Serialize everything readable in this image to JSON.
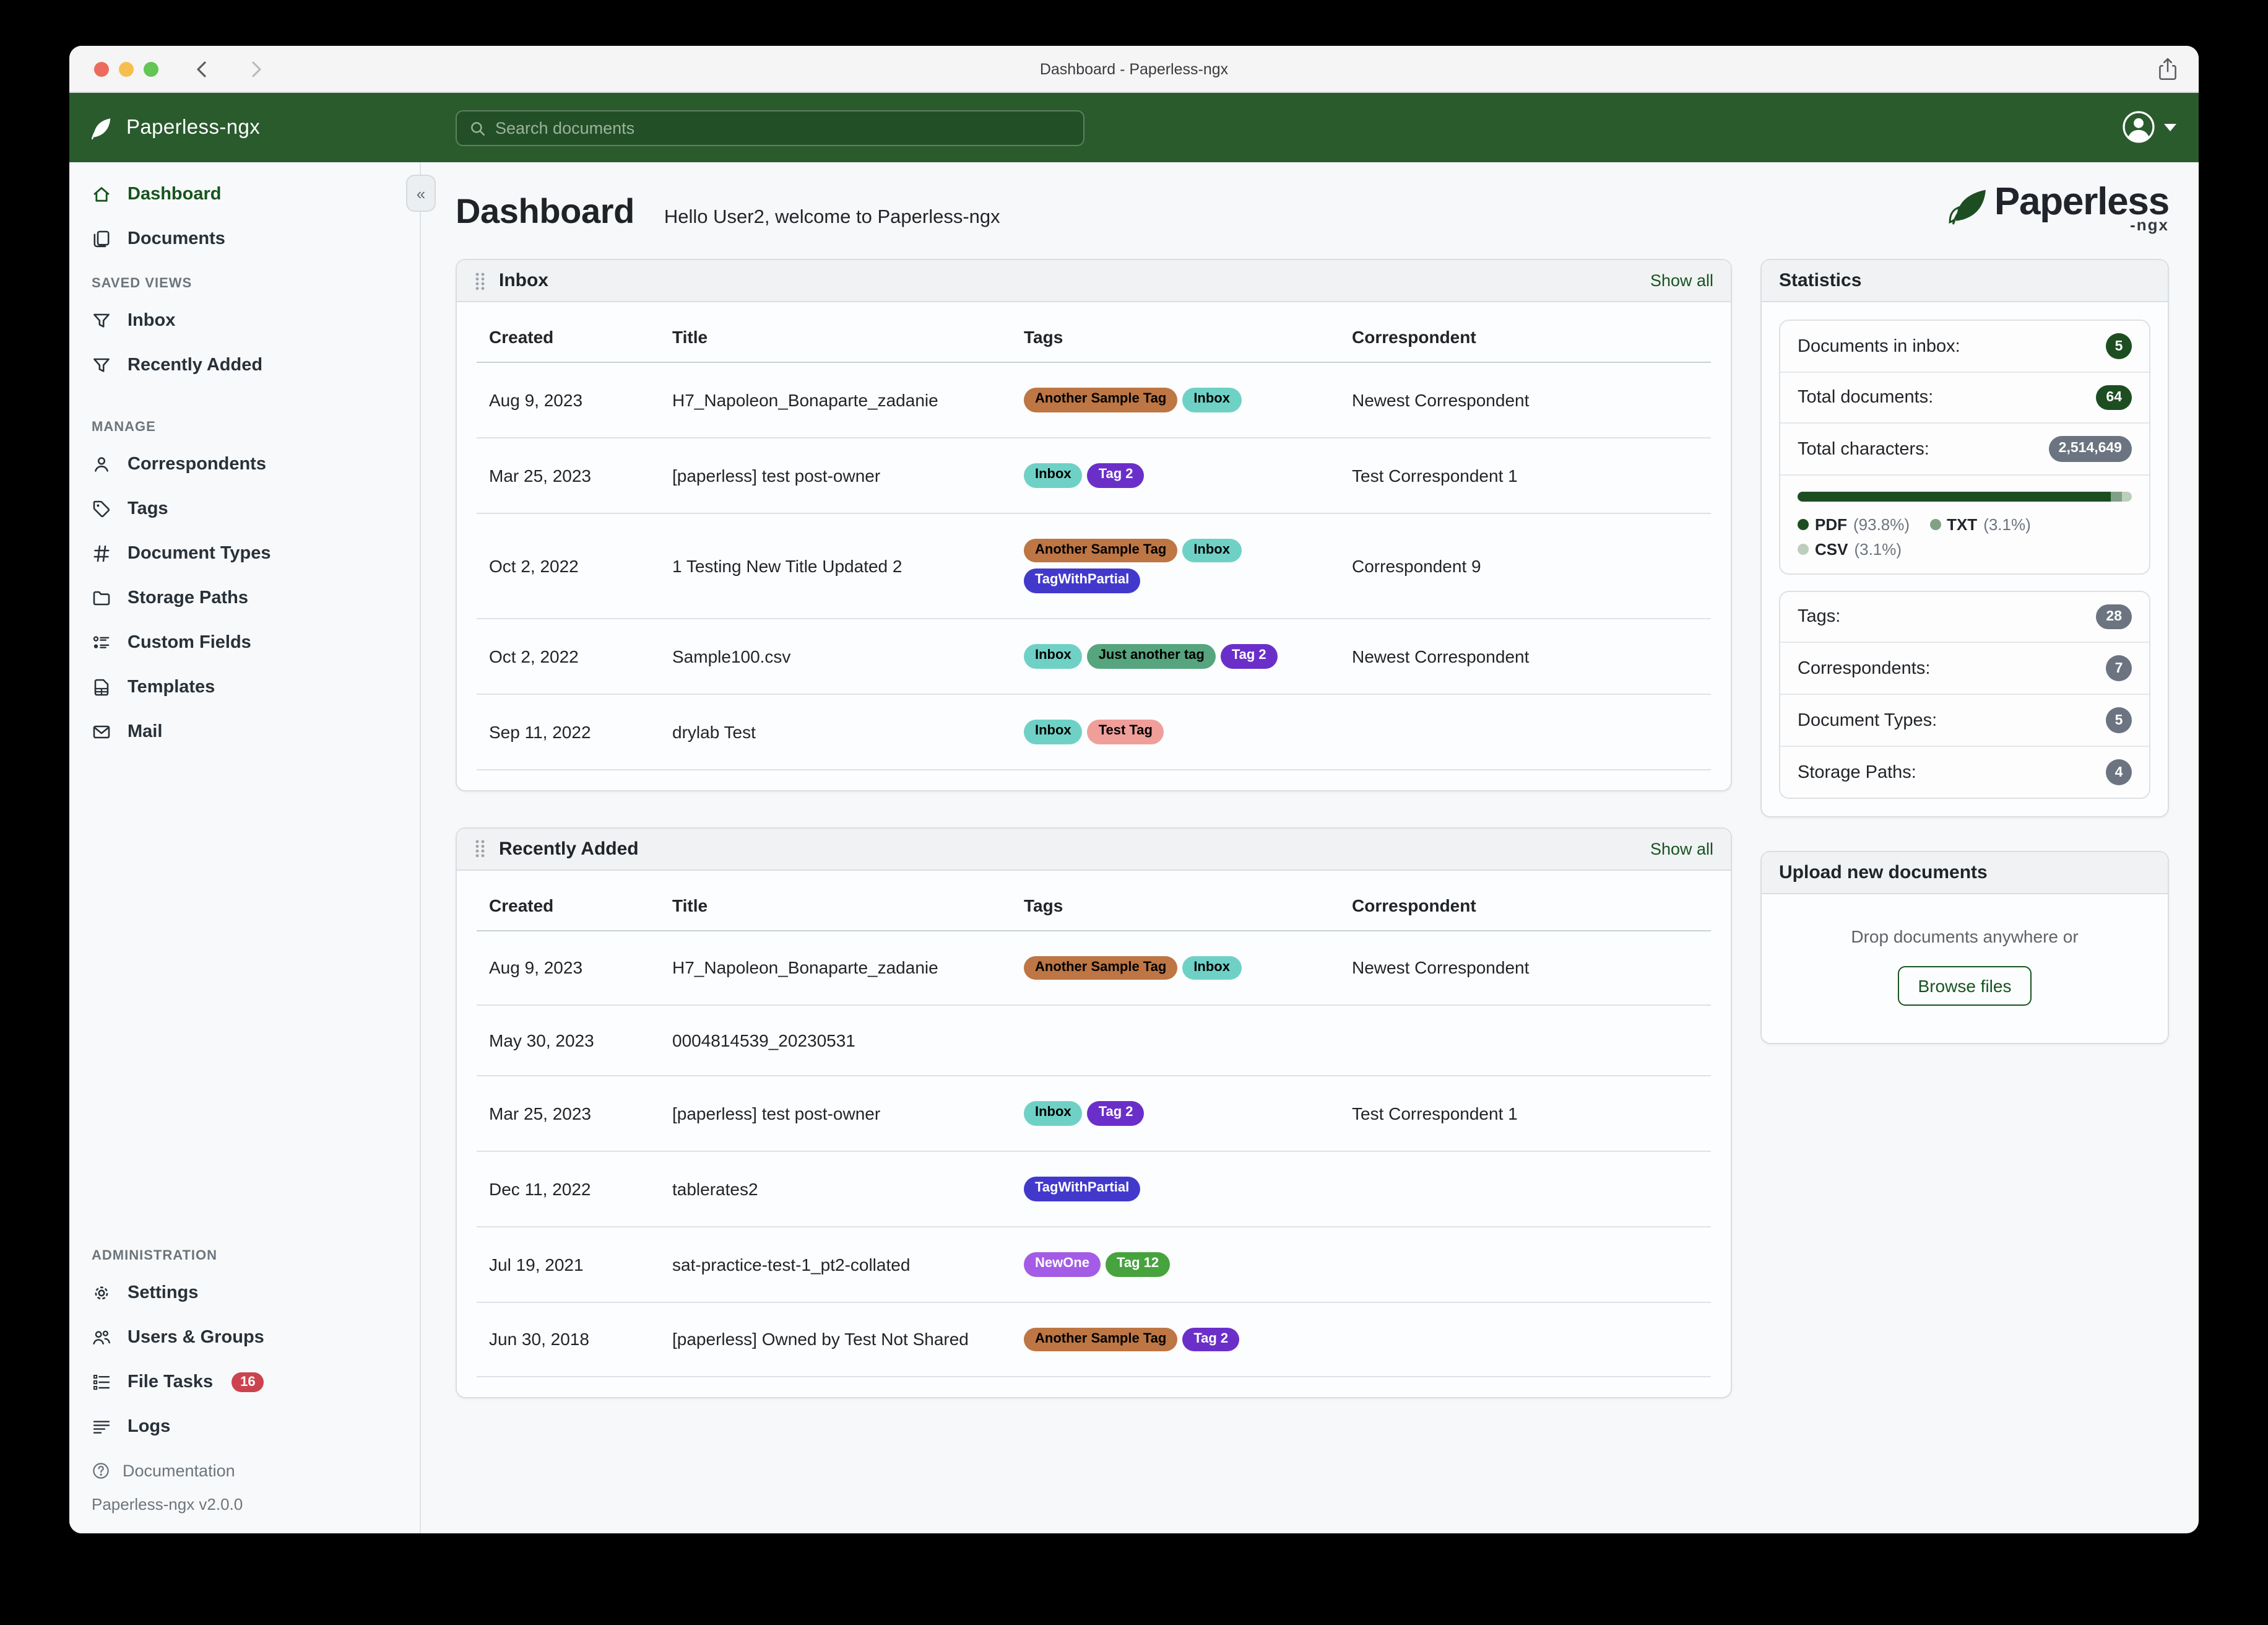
{
  "colors": {
    "accent_green": "#17541f",
    "header_green": "#2a5b2d",
    "badge_green": "#1d4e22",
    "badge_gray": "#6b7480",
    "badge_red": "#cc4350",
    "traffic_red": "#ed6a5e",
    "traffic_yellow": "#f5bf4f",
    "traffic_green": "#62c554"
  },
  "titlebar": {
    "title": "Dashboard - Paperless-ngx"
  },
  "app_header": {
    "brand": "Paperless-ngx",
    "search_placeholder": "Search documents"
  },
  "sidebar": {
    "sections": [
      {
        "heading": "",
        "items": [
          {
            "label": "Dashboard",
            "icon": "home",
            "active": true
          },
          {
            "label": "Documents",
            "icon": "documents"
          }
        ]
      },
      {
        "heading": "SAVED VIEWS",
        "items": [
          {
            "label": "Inbox",
            "icon": "filter"
          },
          {
            "label": "Recently Added",
            "icon": "filter"
          }
        ]
      },
      {
        "heading": "MANAGE",
        "items": [
          {
            "label": "Correspondents",
            "icon": "person"
          },
          {
            "label": "Tags",
            "icon": "tag"
          },
          {
            "label": "Document Types",
            "icon": "hash"
          },
          {
            "label": "Storage Paths",
            "icon": "folder"
          },
          {
            "label": "Custom Fields",
            "icon": "custom-fields"
          },
          {
            "label": "Templates",
            "icon": "template"
          },
          {
            "label": "Mail",
            "icon": "mail"
          }
        ]
      },
      {
        "heading": "ADMINISTRATION",
        "push_bottom": true,
        "items": [
          {
            "label": "Settings",
            "icon": "gear"
          },
          {
            "label": "Users & Groups",
            "icon": "users"
          },
          {
            "label": "File Tasks",
            "icon": "tasks",
            "badge": "16"
          },
          {
            "label": "Logs",
            "icon": "logs"
          }
        ]
      }
    ],
    "footer": {
      "documentation": "Documentation",
      "version": "Paperless-ngx v2.0.0"
    }
  },
  "page": {
    "title": "Dashboard",
    "greeting": "Hello User2, welcome to Paperless-ngx"
  },
  "logo": {
    "word": "Paperless",
    "suffix": "-ngx"
  },
  "tag_defs": {
    "another_sample_tag": {
      "label": "Another Sample Tag",
      "bg": "#bd7644",
      "fg": "#000000"
    },
    "inbox": {
      "label": "Inbox",
      "bg": "#6fd1c6",
      "fg": "#000000"
    },
    "tag2": {
      "label": "Tag 2",
      "bg": "#6b2fc9",
      "fg": "#ffffff"
    },
    "tag_with_partial": {
      "label": "TagWithPartial",
      "bg": "#4239cc",
      "fg": "#ffffff"
    },
    "just_another_tag": {
      "label": "Just another tag",
      "bg": "#56a57e",
      "fg": "#000000"
    },
    "test_tag": {
      "label": "Test Tag",
      "bg": "#f09e9a",
      "fg": "#000000"
    },
    "newone": {
      "label": "NewOne",
      "bg": "#a45ce6",
      "fg": "#ffffff"
    },
    "tag12": {
      "label": "Tag 12",
      "bg": "#47a33e",
      "fg": "#ffffff"
    }
  },
  "cards": [
    {
      "id": "inbox",
      "title": "Inbox",
      "show_all": "Show all",
      "columns": [
        "Created",
        "Title",
        "Tags",
        "Correspondent"
      ],
      "rows": [
        {
          "created": "Aug 9, 2023",
          "title": "H7_Napoleon_Bonaparte_zadanie",
          "tags": [
            "another_sample_tag",
            "inbox"
          ],
          "correspondent": "Newest Correspondent"
        },
        {
          "created": "Mar 25, 2023",
          "title": "[paperless] test post-owner",
          "tags": [
            "inbox",
            "tag2"
          ],
          "correspondent": "Test Correspondent 1"
        },
        {
          "created": "Oct 2, 2022",
          "title": "1 Testing New Title Updated 2",
          "tags": [
            "another_sample_tag",
            "inbox",
            "tag_with_partial"
          ],
          "correspondent": "Correspondent 9"
        },
        {
          "created": "Oct 2, 2022",
          "title": "Sample100.csv",
          "tags": [
            "inbox",
            "just_another_tag",
            "tag2"
          ],
          "correspondent": "Newest Correspondent"
        },
        {
          "created": "Sep 11, 2022",
          "title": "drylab Test",
          "tags": [
            "inbox",
            "test_tag"
          ],
          "correspondent": ""
        }
      ]
    },
    {
      "id": "recent",
      "title": "Recently Added",
      "show_all": "Show all",
      "columns": [
        "Created",
        "Title",
        "Tags",
        "Correspondent"
      ],
      "rows": [
        {
          "created": "Aug 9, 2023",
          "title": "H7_Napoleon_Bonaparte_zadanie",
          "tags": [
            "another_sample_tag",
            "inbox"
          ],
          "correspondent": "Newest Correspondent"
        },
        {
          "created": "May 30, 2023",
          "title": "0004814539_20230531",
          "tags": [],
          "correspondent": ""
        },
        {
          "created": "Mar 25, 2023",
          "title": "[paperless] test post-owner",
          "tags": [
            "inbox",
            "tag2"
          ],
          "correspondent": "Test Correspondent 1"
        },
        {
          "created": "Dec 11, 2022",
          "title": "tablerates2",
          "tags": [
            "tag_with_partial"
          ],
          "correspondent": ""
        },
        {
          "created": "Jul 19, 2021",
          "title": "sat-practice-test-1_pt2-collated",
          "tags": [
            "newone",
            "tag12"
          ],
          "correspondent": ""
        },
        {
          "created": "Jun 30, 2018",
          "title": "[paperless] Owned by Test Not Shared",
          "tags": [
            "another_sample_tag",
            "tag2"
          ],
          "correspondent": ""
        }
      ]
    }
  ],
  "statistics": {
    "title": "Statistics",
    "counts_primary": [
      {
        "label": "Documents in inbox:",
        "value": "5",
        "style": "green",
        "shape": "circle"
      },
      {
        "label": "Total documents:",
        "value": "64",
        "style": "green",
        "shape": "pill"
      },
      {
        "label": "Total characters:",
        "value": "2,514,649",
        "style": "gray",
        "shape": "pill"
      }
    ],
    "file_types": {
      "segments": [
        {
          "label": "PDF",
          "share": "(93.8%)",
          "pct": 93.8,
          "color": "#1d4e22"
        },
        {
          "label": "TXT",
          "share": "(3.1%)",
          "pct": 3.1,
          "color": "#81a184"
        },
        {
          "label": "CSV",
          "share": "(3.1%)",
          "pct": 3.1,
          "color": "#bccfbd"
        }
      ]
    },
    "counts_secondary": [
      {
        "label": "Tags:",
        "value": "28",
        "style": "gray",
        "shape": "pill"
      },
      {
        "label": "Correspondents:",
        "value": "7",
        "style": "gray",
        "shape": "circle"
      },
      {
        "label": "Document Types:",
        "value": "5",
        "style": "gray",
        "shape": "circle"
      },
      {
        "label": "Storage Paths:",
        "value": "4",
        "style": "gray",
        "shape": "circle"
      }
    ]
  },
  "upload": {
    "title": "Upload new documents",
    "hint": "Drop documents anywhere or",
    "button": "Browse files"
  }
}
